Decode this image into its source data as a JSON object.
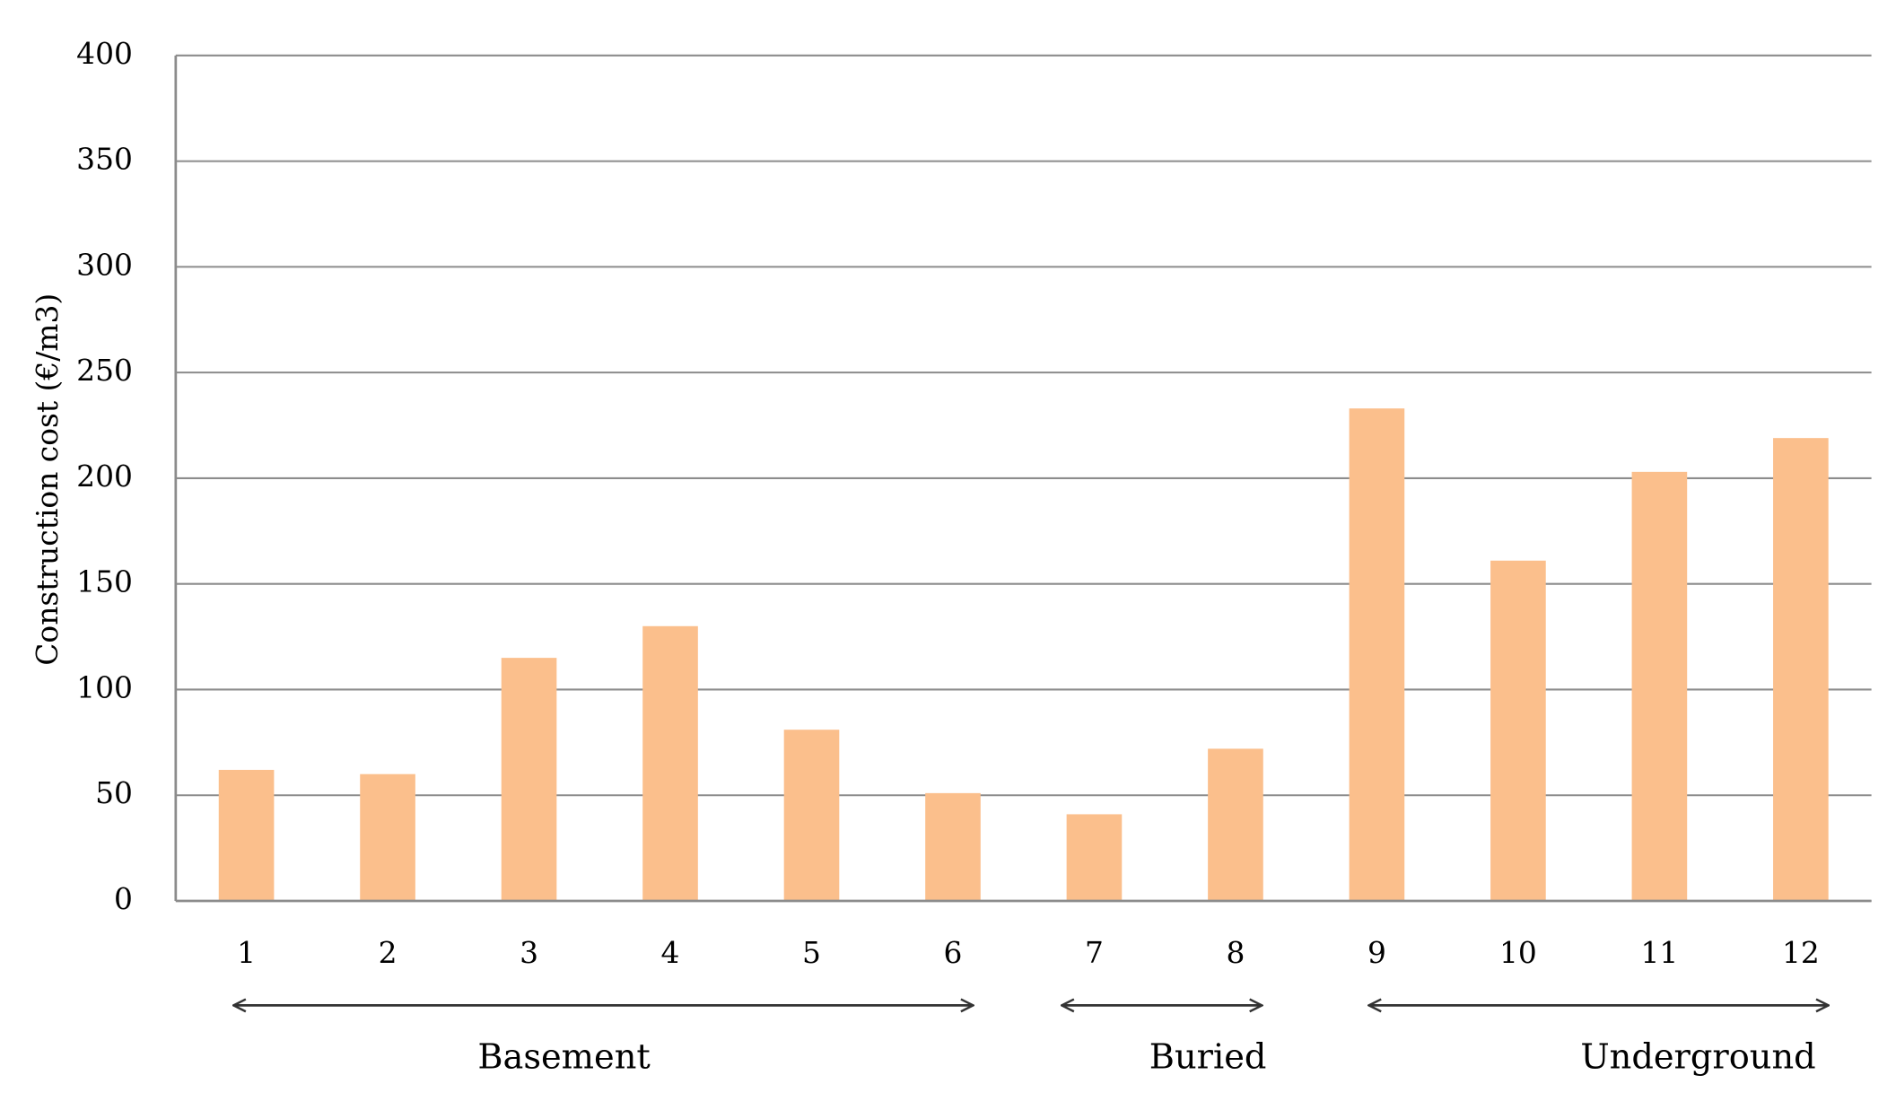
{
  "chart_data": {
    "type": "bar",
    "y_label": "Construction cost  (€/m3)",
    "categories": [
      "1",
      "2",
      "3",
      "4",
      "5",
      "6",
      "7",
      "8",
      "9",
      "10",
      "11",
      "12"
    ],
    "values": [
      62,
      60,
      115,
      130,
      81,
      51,
      41,
      72,
      233,
      161,
      203,
      219
    ],
    "color": "#fbbf8c",
    "ylim": [
      0,
      400
    ],
    "yticks": [
      0,
      50,
      100,
      150,
      200,
      250,
      300,
      350,
      400
    ],
    "grid": true,
    "annotations": [
      "Basement",
      "Buried",
      "Underground"
    ]
  }
}
